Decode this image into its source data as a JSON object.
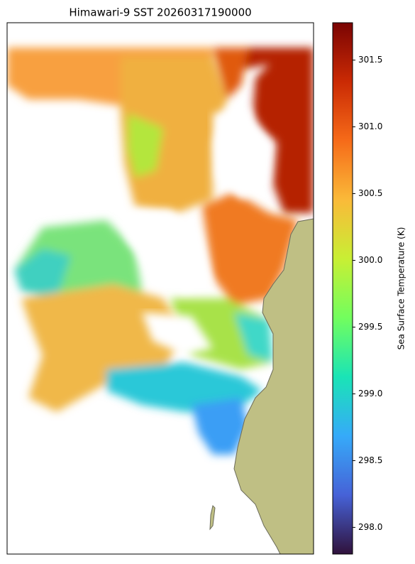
{
  "title": "Himawari-9 SST 20260317190000",
  "colorbar": {
    "label": "Sea Surface Temperature (K)",
    "lim": [
      297.8,
      301.78
    ],
    "ticks": [
      {
        "value": 298,
        "label": "298.0"
      },
      298.5,
      {
        "value": 299,
        "label": "299.0"
      },
      299.5,
      {
        "value": 300,
        "label": "300.0"
      },
      300.5,
      {
        "value": 301,
        "label": "301.0"
      },
      301.5
    ],
    "colormap": [
      "#30123b",
      "#4662d7",
      "#36aaf9",
      "#1ae4b6",
      "#72fe5e",
      "#c8ef34",
      "#faba39",
      "#f66b19",
      "#ca2a04",
      "#7a0403"
    ]
  }
}
